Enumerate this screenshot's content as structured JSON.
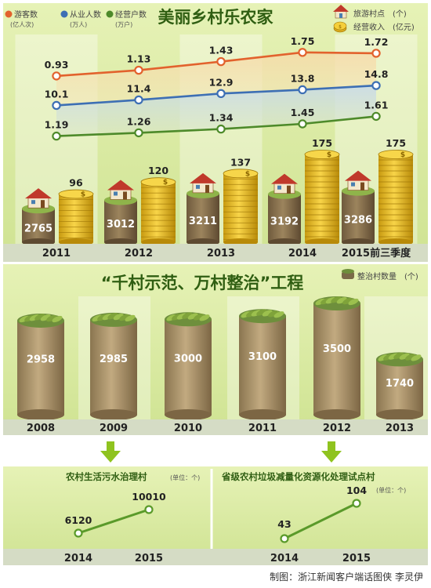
{
  "chart_data": [
    {
      "type": "line",
      "title": "美丽乡村乐农家",
      "categories": [
        "2011",
        "2012",
        "2013",
        "2014",
        "2015前三季度"
      ],
      "series": [
        {
          "name": "游客数",
          "unit": "(亿人次)",
          "values": [
            0.93,
            1.13,
            1.43,
            1.75,
            1.72
          ],
          "labels": [
            "0.93",
            "1.13",
            "1.43",
            "1.75",
            "1.72"
          ],
          "color": "#e2622d"
        },
        {
          "name": "从业人数",
          "unit": "(万人)",
          "values": [
            10.1,
            11.4,
            12.9,
            13.8,
            14.8
          ],
          "labels": [
            "10.1",
            "11.4",
            "12.9",
            "13.8",
            "14.8"
          ],
          "color": "#3d6fb4"
        },
        {
          "name": "经营户数",
          "unit": "(万户)",
          "values": [
            1.19,
            1.26,
            1.34,
            1.45,
            1.61
          ],
          "labels": [
            "1.19",
            "1.26",
            "1.34",
            "1.45",
            "1.61"
          ],
          "color": "#4d8a2a"
        }
      ]
    },
    {
      "type": "bar",
      "categories": [
        "2011",
        "2012",
        "2013",
        "2014",
        "2015前三季度"
      ],
      "series": [
        {
          "name": "旅游村点",
          "unit": "(个)",
          "values": [
            2765,
            3012,
            3211,
            3192,
            3286
          ],
          "labels": [
            "2765",
            "3012",
            "3211",
            "3192",
            "3286"
          ]
        },
        {
          "name": "经营收入",
          "unit": "(亿元)",
          "values": [
            96,
            120,
            137,
            175,
            175
          ],
          "labels": [
            "96",
            "120",
            "137",
            "175",
            "175"
          ]
        }
      ]
    },
    {
      "type": "bar",
      "title": "“千村示范、万村整治”工程",
      "categories": [
        "2008",
        "2009",
        "2010",
        "2011",
        "2012",
        "2013"
      ],
      "series": [
        {
          "name": "整治村数量",
          "unit": "(个)",
          "values": [
            2958,
            2985,
            3000,
            3100,
            3500,
            1740
          ],
          "labels": [
            "2958",
            "2985",
            "3000",
            "3100",
            "3500",
            "1740"
          ]
        }
      ]
    },
    {
      "type": "line",
      "title": "农村生活污水治理村",
      "unit_note": "(单位：个)",
      "categories": [
        "2014",
        "2015"
      ],
      "values": [
        6120,
        10010
      ],
      "labels": [
        "6120",
        "10010"
      ]
    },
    {
      "type": "line",
      "title": "省级农村垃圾减量化资源化处理试点村",
      "unit_note": "(单位：个)",
      "categories": [
        "2014",
        "2015"
      ],
      "values": [
        43,
        104
      ],
      "labels": [
        "43",
        "104"
      ]
    }
  ],
  "credit": "制图：浙江新闻客户端话图侠  李灵伊"
}
